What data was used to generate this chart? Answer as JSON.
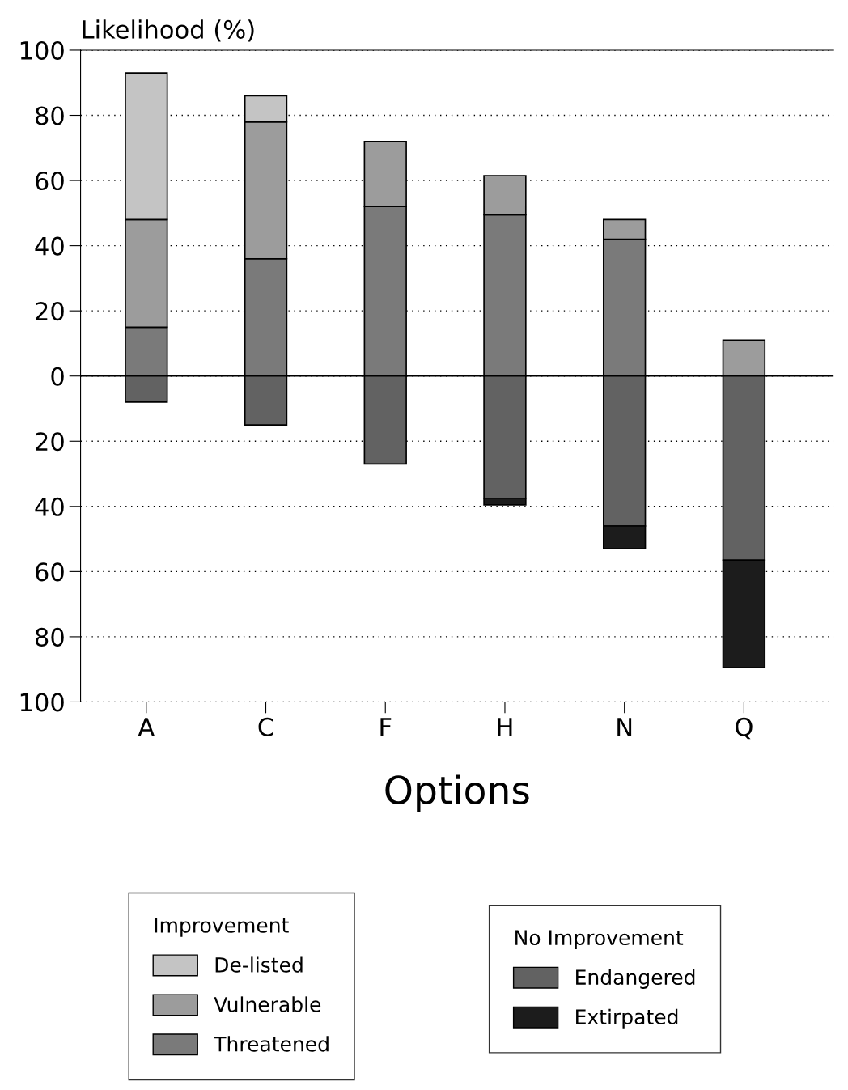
{
  "chart_data": {
    "type": "bar",
    "stacked": true,
    "ylabel": "Likelihood (%)",
    "xlabel": "Options",
    "categories": [
      "A",
      "C",
      "F",
      "H",
      "N",
      "Q"
    ],
    "series": [
      {
        "name": "Threatened",
        "color": "#7a7a7a",
        "values": [
          15,
          36,
          52,
          49.5,
          42,
          0
        ]
      },
      {
        "name": "Vulnerable",
        "color": "#9c9c9c",
        "values": [
          33,
          42,
          20,
          12,
          6,
          11
        ]
      },
      {
        "name": "De-listed",
        "color": "#c4c4c4",
        "values": [
          45,
          8,
          null,
          null,
          null,
          null
        ]
      },
      {
        "name": "Endangered",
        "color": "#626262",
        "values": [
          -8,
          -15,
          -27,
          -37.5,
          -46,
          -56.5
        ]
      },
      {
        "name": "Extirpated",
        "color": "#1c1c1c",
        "values": [
          null,
          null,
          null,
          -2,
          -7,
          -33
        ]
      }
    ],
    "legend_title": [
      "Improvement",
      "No Improvement"
    ],
    "legend": "bottom",
    "ylim": [
      -100,
      100
    ],
    "yticks": [
      {
        "value": -100,
        "label": "100"
      },
      {
        "value": -80,
        "label": "80"
      },
      {
        "value": -60,
        "label": "60"
      },
      {
        "value": -40,
        "label": "40"
      },
      {
        "value": -20,
        "label": "20"
      },
      0,
      20,
      40,
      60,
      80,
      100
    ],
    "grid": "y"
  }
}
